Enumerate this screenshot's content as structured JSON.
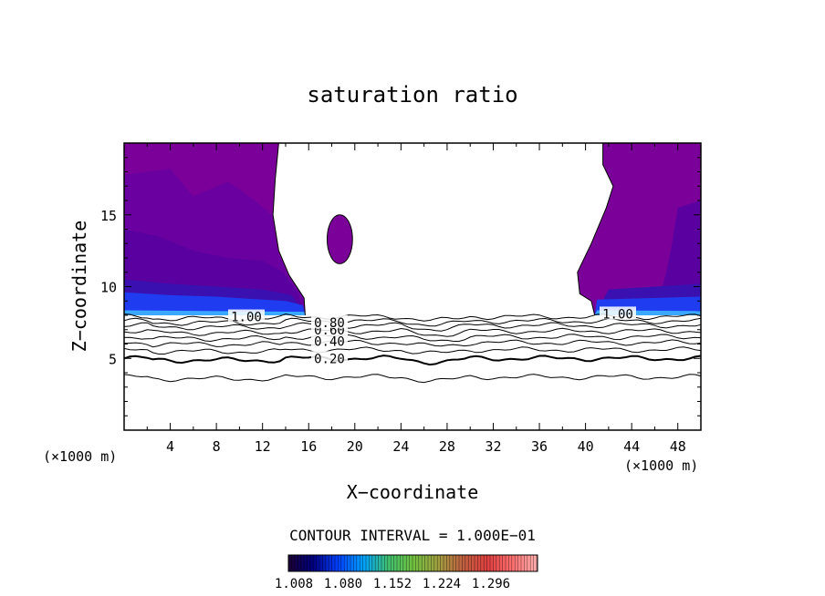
{
  "chart_data": {
    "type": "contour",
    "title": "saturation ratio",
    "xlabel": "X−coordinate",
    "ylabel": "Z−coordinate",
    "x_unit_left": "(×1000 m)",
    "x_unit_right": "(×1000 m)",
    "xlim": [
      0,
      50
    ],
    "ylim": [
      0,
      20
    ],
    "x_ticks": [
      4,
      8,
      12,
      16,
      20,
      24,
      28,
      32,
      36,
      40,
      44,
      48
    ],
    "y_ticks": [
      5,
      10,
      15
    ],
    "contour_interval_label": "CONTOUR INTERVAL = 1.000E−01",
    "contour_lines": [
      {
        "level": "0.20",
        "z": 5.0
      },
      {
        "level": "",
        "z": 3.7
      },
      {
        "level": "",
        "z": 5.6
      },
      {
        "level": "0.40",
        "z": 6.1
      },
      {
        "level": "",
        "z": 6.5
      },
      {
        "level": "0.60",
        "z": 6.9
      },
      {
        "level": "0.80",
        "z": 7.3
      },
      {
        "level": "",
        "z": 7.6
      },
      {
        "level": "",
        "z": 7.9
      }
    ],
    "contour_labels": [
      {
        "text": "0.20",
        "x": 17.8,
        "z": 5.0
      },
      {
        "text": "0.40",
        "x": 17.8,
        "z": 6.2
      },
      {
        "text": "0.60",
        "x": 17.8,
        "z": 7.0
      },
      {
        "text": "0.80",
        "x": 17.8,
        "z": 7.5
      },
      {
        "text": "1.00",
        "x": 10.6,
        "z": 7.9
      },
      {
        "text": "1.00",
        "x": 42.8,
        "z": 8.1
      }
    ],
    "colorbar": {
      "ticks": [
        "1.008",
        "1.080",
        "1.152",
        "1.224",
        "1.296"
      ],
      "colors": [
        "#1a0033",
        "#000080",
        "#0040ff",
        "#00a0ff",
        "#40c070",
        "#70c040",
        "#a0a040",
        "#c06040",
        "#e04040",
        "#ff7070",
        "#ffb0b0"
      ]
    },
    "colors": {
      "supersat_outer": "#7b0099",
      "supersat_mid": "#5a00a0",
      "supersat_inner": "#3a10b0",
      "supersat_band": "#1f3cf0",
      "supersat_edge": "#3aa8ff"
    }
  }
}
